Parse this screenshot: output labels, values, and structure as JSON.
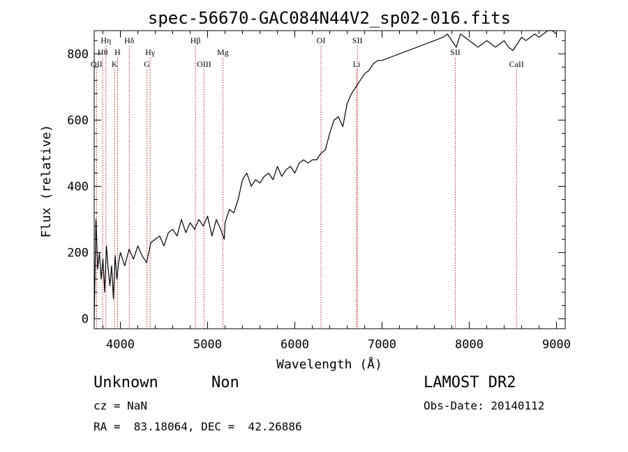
{
  "chart_data": {
    "type": "line",
    "title": "spec-56670-GAC084N44V2_sp02-016.fits",
    "xlabel": "Wavelength (Å)",
    "ylabel": "Flux (relative)",
    "xlim": [
      3700,
      9100
    ],
    "ylim": [
      -30,
      870
    ],
    "xticks": [
      4000,
      5000,
      6000,
      7000,
      8000,
      9000
    ],
    "yticks": [
      0,
      200,
      400,
      600,
      800
    ],
    "grid": false,
    "line_color": "#000000",
    "marker_color": "#b22222",
    "series": [
      {
        "x": [
          3700,
          3720,
          3740,
          3760,
          3780,
          3800,
          3820,
          3840,
          3860,
          3880,
          3900,
          3920,
          3940,
          3960,
          3980,
          4000,
          4050,
          4100,
          4150,
          4200,
          4250,
          4300,
          4350,
          4400,
          4450,
          4500,
          4550,
          4600,
          4650,
          4700,
          4750,
          4800,
          4850,
          4900,
          4950,
          5000,
          5050,
          5100,
          5150,
          5190,
          5200,
          5250,
          5300,
          5350,
          5400,
          5450,
          5500,
          5550,
          5600,
          5650,
          5700,
          5750,
          5800,
          5850,
          5900,
          5950,
          6000,
          6050,
          6100,
          6150,
          6200,
          6250,
          6300,
          6350,
          6400,
          6450,
          6500,
          6550,
          6600,
          6650,
          6700,
          6750,
          6800,
          6850,
          6900,
          6950,
          7000,
          7100,
          7200,
          7300,
          7400,
          7500,
          7600,
          7700,
          7750,
          7800,
          7850,
          7900,
          7950,
          8000,
          8050,
          8100,
          8150,
          8200,
          8250,
          8300,
          8350,
          8400,
          8450,
          8500,
          8550,
          8600,
          8650,
          8700,
          8750,
          8800,
          8850,
          8900,
          8950,
          9000
        ],
        "y": [
          0,
          300,
          150,
          200,
          120,
          180,
          80,
          220,
          150,
          100,
          160,
          60,
          190,
          120,
          170,
          200,
          160,
          210,
          180,
          220,
          190,
          170,
          230,
          240,
          250,
          220,
          260,
          270,
          250,
          300,
          260,
          290,
          270,
          300,
          280,
          310,
          250,
          300,
          270,
          240,
          290,
          330,
          320,
          360,
          420,
          440,
          400,
          420,
          410,
          430,
          440,
          420,
          460,
          430,
          450,
          460,
          440,
          470,
          480,
          470,
          480,
          480,
          500,
          510,
          560,
          600,
          610,
          580,
          650,
          680,
          700,
          720,
          740,
          750,
          770,
          780,
          780,
          790,
          800,
          810,
          820,
          830,
          840,
          850,
          860,
          840,
          820,
          860,
          850,
          840,
          830,
          820,
          830,
          840,
          830,
          820,
          830,
          840,
          820,
          810,
          830,
          850,
          840,
          850,
          860,
          850,
          860,
          870,
          870,
          860
        ]
      }
    ],
    "lines": [
      {
        "name": "Hη",
        "x": 3835,
        "row": 1
      },
      {
        "name": "Hθ",
        "x": 3797,
        "row": 2
      },
      {
        "name": "OII",
        "x": 3727,
        "row": 3
      },
      {
        "name": "H",
        "x": 3968,
        "row": 2
      },
      {
        "name": "K",
        "x": 3934,
        "row": 3
      },
      {
        "name": "Hδ",
        "x": 4102,
        "row": 1
      },
      {
        "name": "Hγ",
        "x": 4341,
        "row": 2
      },
      {
        "name": "G",
        "x": 4305,
        "row": 3
      },
      {
        "name": "Hβ",
        "x": 4861,
        "row": 1
      },
      {
        "name": "OIII",
        "x": 4959,
        "row": 3
      },
      {
        "name": "Mg",
        "x": 5175,
        "row": 2
      },
      {
        "name": "OI",
        "x": 6300,
        "row": 1
      },
      {
        "name": "SII",
        "x": 6717,
        "row": 1
      },
      {
        "name": "Li",
        "x": 6708,
        "row": 3
      },
      {
        "name": "SII",
        "x": 7840,
        "row": 2
      },
      {
        "name": "CaII",
        "x": 8542,
        "row": 3
      }
    ]
  },
  "footer": {
    "object_class": "Unknown",
    "object_subclass": "Non",
    "survey": "LAMOST DR2",
    "redshift": "cz = NaN",
    "obs_date": "Obs-Date: 20140112",
    "coords": "RA =  83.18064, DEC =  42.26886"
  }
}
